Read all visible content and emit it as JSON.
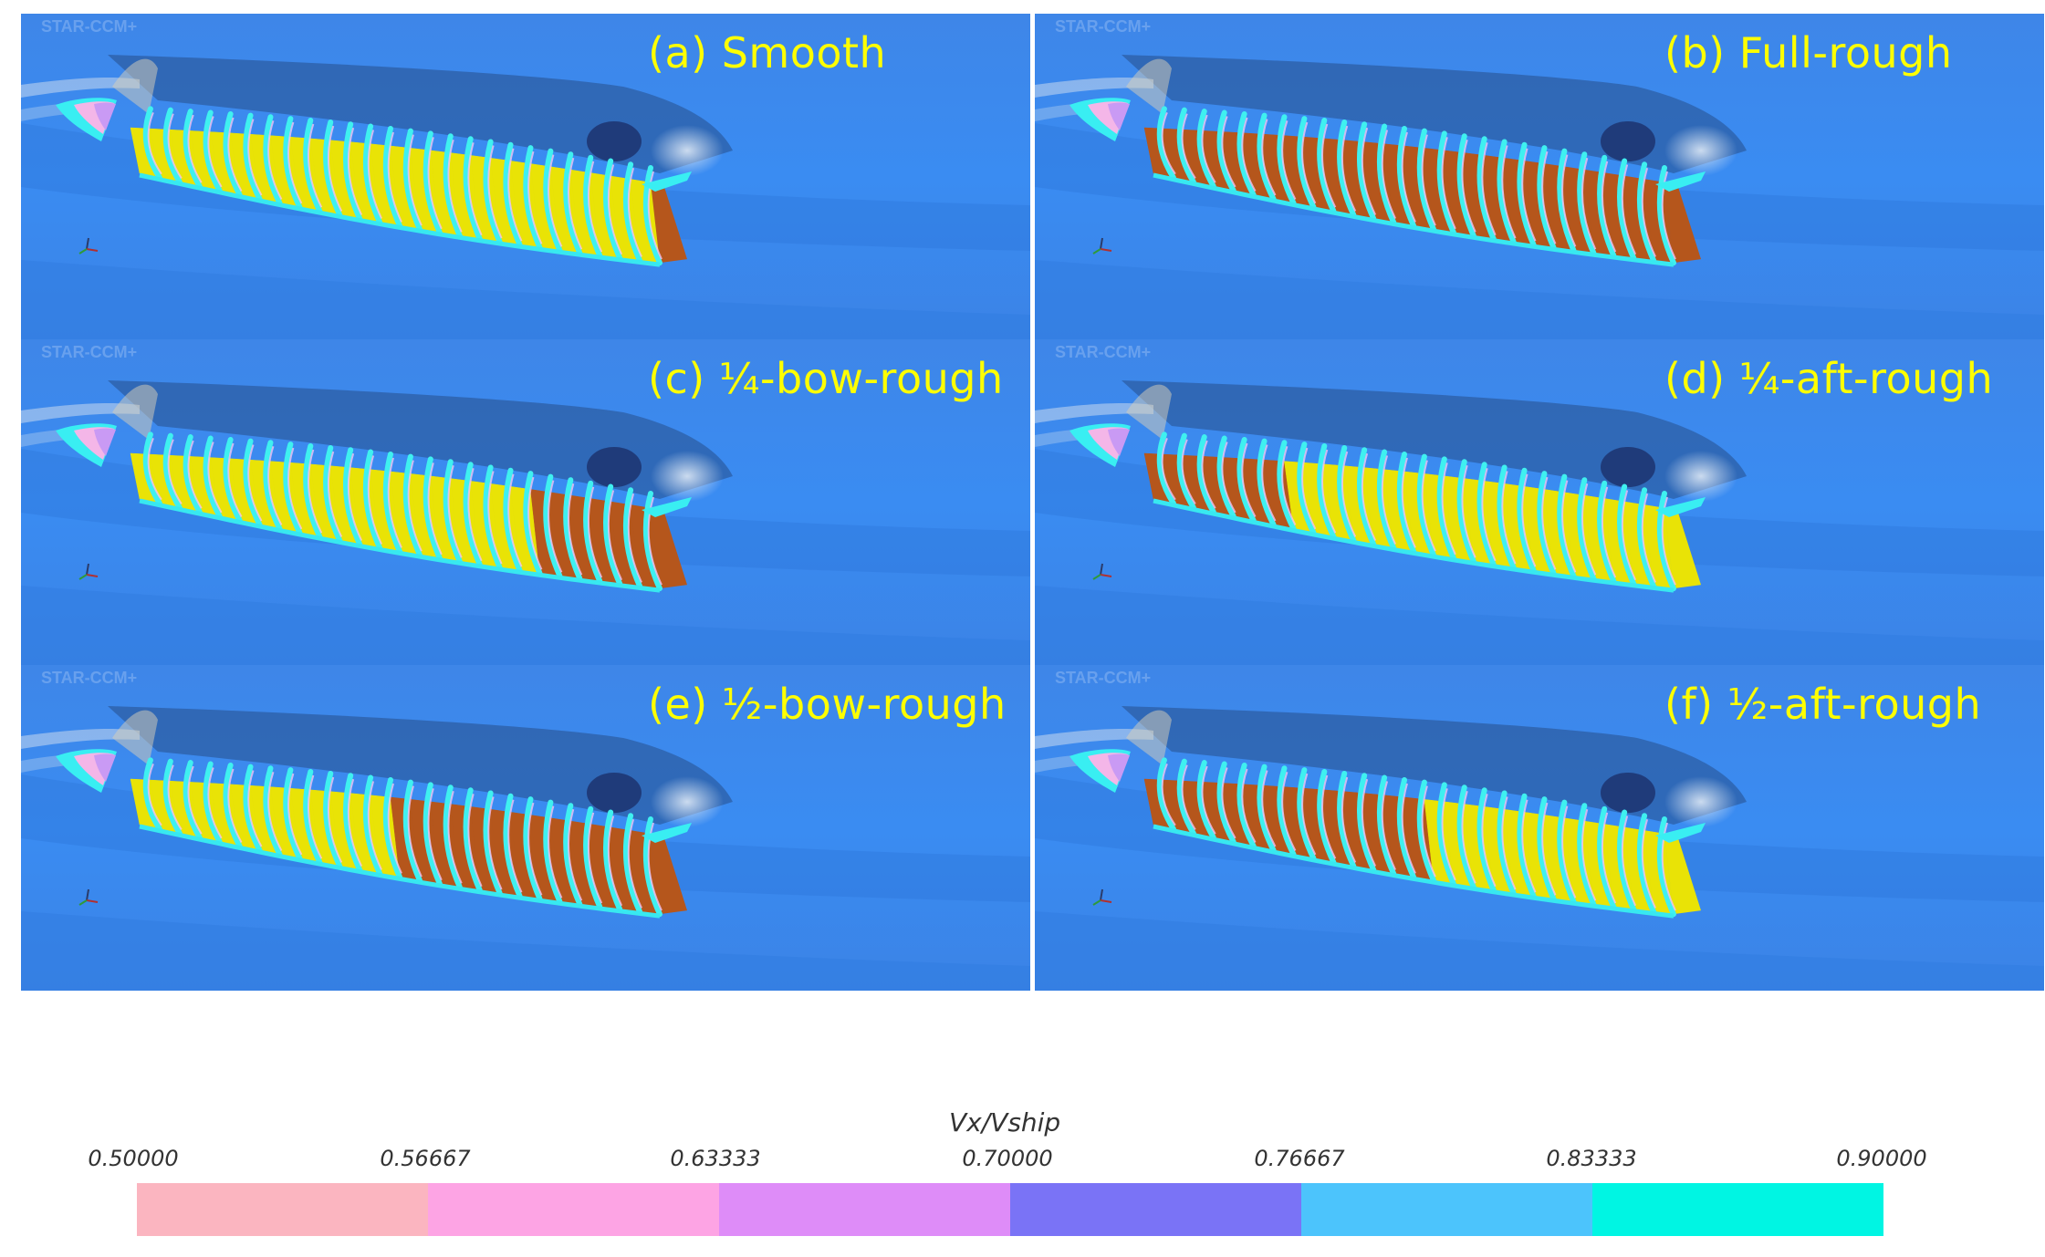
{
  "panels": [
    {
      "label": "(a) Smooth",
      "rough_section": "none"
    },
    {
      "label": "(b) Full-rough",
      "rough_section": "full"
    },
    {
      "label": "(c) ¼-bow-rough",
      "rough_section": "bow-quarter"
    },
    {
      "label": "(d) ¼-aft-rough",
      "rough_section": "aft-quarter"
    },
    {
      "label": "(e) ½-bow-rough",
      "rough_section": "bow-half"
    },
    {
      "label": "(f) ½-aft-rough",
      "rough_section": "aft-half"
    }
  ],
  "watermark": "STAR-CCM+",
  "legend": {
    "title": "Vx/Vship",
    "ticks": [
      "0.50000",
      "0.56667",
      "0.63333",
      "0.70000",
      "0.76667",
      "0.83333",
      "0.90000"
    ],
    "band_colors": [
      "#fbb5c0",
      "#fda4e4",
      "#de8cf8",
      "#7a73f6",
      "#4cc4fc",
      "#00f5e3"
    ]
  },
  "colors": {
    "smooth_hull": "#e9e306",
    "rough_hull": "#b5561c",
    "label_text": "#ffff00",
    "background_flow": "#3b8cf0"
  }
}
